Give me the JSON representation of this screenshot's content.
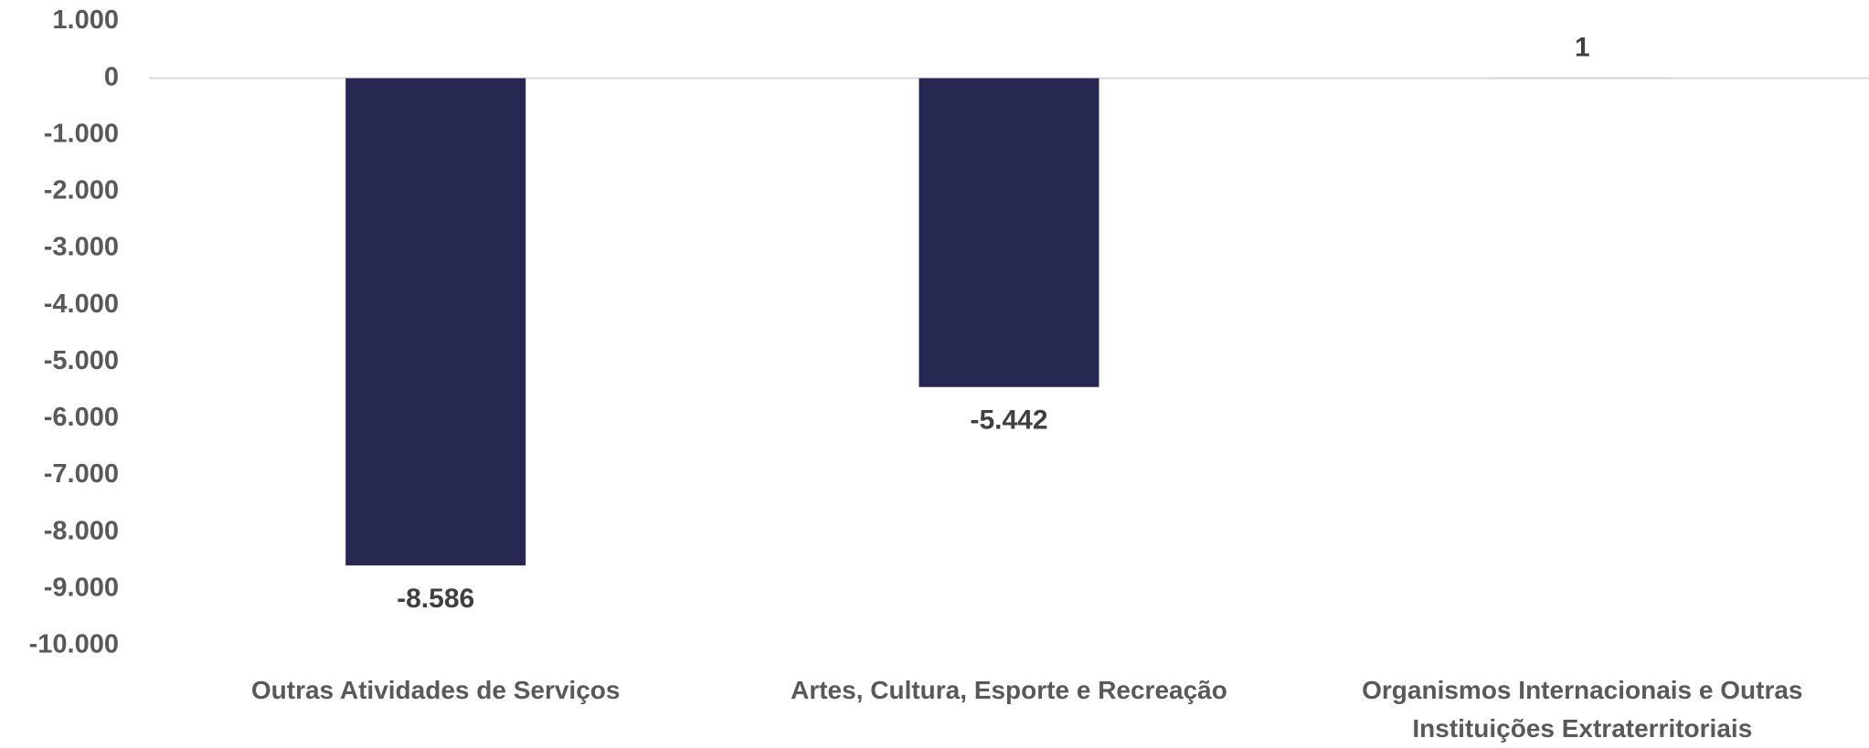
{
  "chart_data": {
    "type": "bar",
    "categories": [
      "Outras Atividades de Serviços",
      "Artes, Cultura, Esporte e Recreação",
      "Organismos Internacionais e Outras Instituições Extraterritoriais"
    ],
    "values": [
      -8586,
      -5442,
      1
    ],
    "value_labels": [
      "-8.586",
      "-5.442",
      "1"
    ],
    "color": "#262852",
    "ylim": [
      -10000,
      1000
    ],
    "yticks": [
      {
        "value": 1000,
        "label": "1.000"
      },
      0,
      {
        "value": -1000,
        "label": "-1.000"
      },
      {
        "value": -2000,
        "label": "-2.000"
      },
      {
        "value": -3000,
        "label": "-3.000"
      },
      {
        "value": -4000,
        "label": "-4.000"
      },
      {
        "value": -5000,
        "label": "-5.000"
      },
      {
        "value": -6000,
        "label": "-6.000"
      },
      {
        "value": -7000,
        "label": "-7.000"
      },
      {
        "value": -8000,
        "label": "-8.000"
      },
      {
        "value": -9000,
        "label": "-9.000"
      },
      {
        "value": -10000,
        "label": "-10.000"
      }
    ],
    "grid": false
  }
}
